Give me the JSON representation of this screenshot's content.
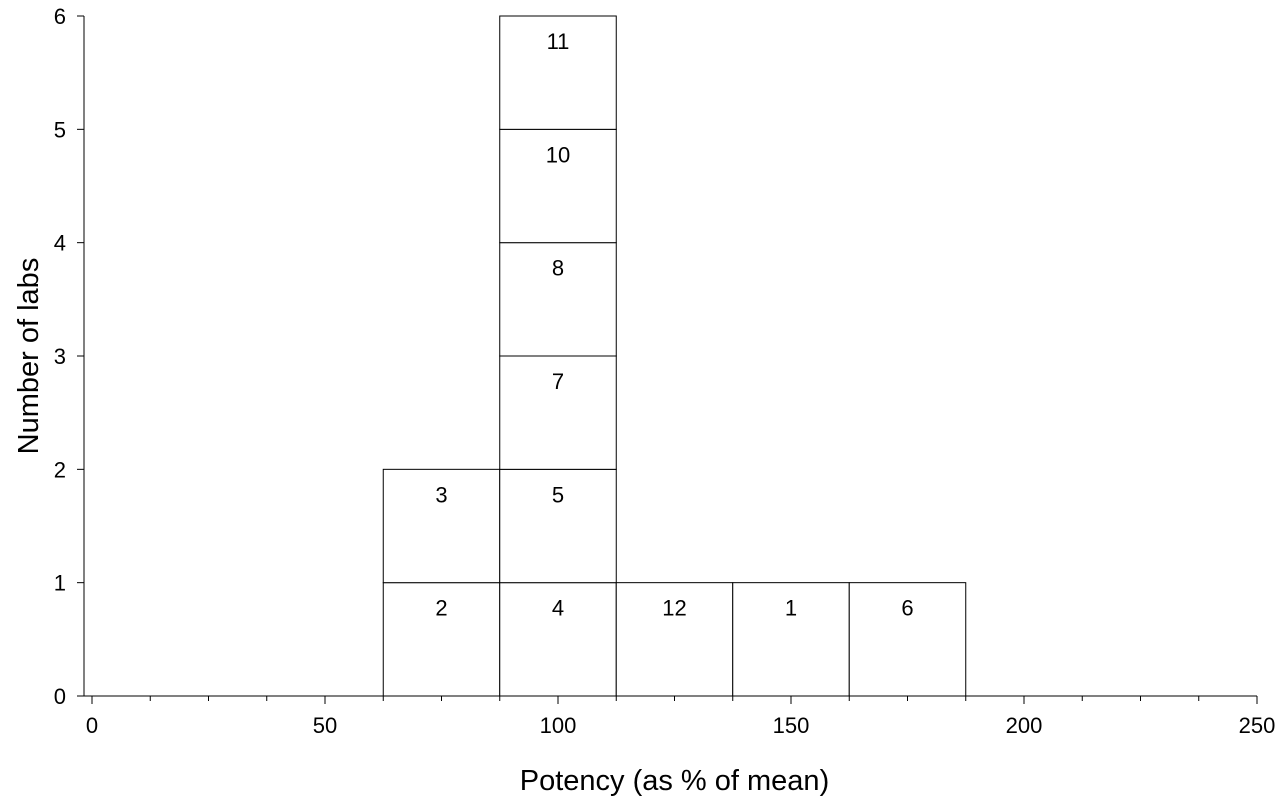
{
  "chart_data": {
    "type": "bar",
    "subtype": "stacked-dot-histogram",
    "title": "",
    "xlabel": "Potency (as % of mean)",
    "ylabel": "Number of labs",
    "xlim": [
      0,
      250
    ],
    "ylim": [
      0,
      6
    ],
    "x_ticks": [
      0,
      50,
      100,
      150,
      200,
      250
    ],
    "x_minor_tick_step": 12.5,
    "y_ticks": [
      0,
      1,
      2,
      3,
      4,
      5,
      6
    ],
    "bin_width": 25,
    "grid": false,
    "bins": [
      {
        "center": 75,
        "count": 2,
        "labs": [
          "2",
          "3"
        ]
      },
      {
        "center": 100,
        "count": 6,
        "labs": [
          "4",
          "5",
          "7",
          "8",
          "10",
          "11"
        ]
      },
      {
        "center": 125,
        "count": 1,
        "labs": [
          "12"
        ]
      },
      {
        "center": 150,
        "count": 1,
        "labs": [
          "1"
        ]
      },
      {
        "center": 175,
        "count": 1,
        "labs": [
          "6"
        ]
      }
    ]
  }
}
